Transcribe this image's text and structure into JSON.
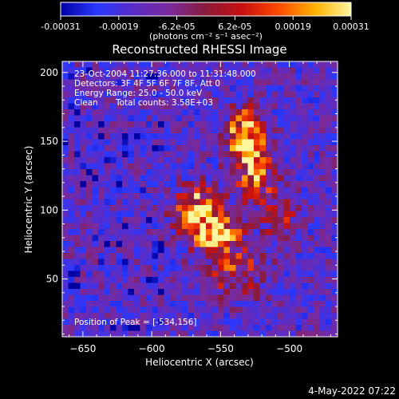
{
  "chart_data": {
    "type": "heatmap",
    "title": "Reconstructed RHESSI Image",
    "xlabel": "Heliocentric X (arcsec)",
    "ylabel": "Heliocentric Y (arcsec)",
    "xlim": [
      -665,
      -465
    ],
    "ylim": [
      8,
      208
    ],
    "xticks": [
      -650,
      -600,
      -550,
      -500
    ],
    "yticks": [
      50,
      100,
      150,
      200
    ],
    "colorbar": {
      "min": -0.00031,
      "max": 0.00031,
      "ticks": [
        "-0.00031",
        "-0.00019",
        "-6.2e-05",
        "6.2e-05",
        "0.00019",
        "0.00031"
      ],
      "unit_label": "(photons cm⁻² s⁻¹ asec⁻²)",
      "colormap": [
        "#0000a0",
        "#2a38ff",
        "#5a2cc8",
        "#7a2a9a",
        "#8a1a3a",
        "#c81010",
        "#ff4a00",
        "#ffb000",
        "#fff6a0"
      ]
    },
    "annotations": {
      "time_range": "23-Oct-2004 11:27:36.000 to 11:31:48.000",
      "detectors": "Detectors: 3F 4F 5F 6F 7F 8F, Att 0",
      "energy_range": "Energy Range: 25.0 - 50.0 keV",
      "algorithm": "Clean",
      "total_counts": "Total counts: 3.58E+03",
      "peak_position": "Position of Peak = [-534,156]"
    },
    "peak": {
      "x": -534,
      "y": 156
    },
    "sources": [
      {
        "x": -533,
        "y": 156,
        "amplitude": 1.0,
        "sigma_x": 7,
        "sigma_y": 11
      },
      {
        "x": -526,
        "y": 130,
        "amplitude": 0.7,
        "sigma_x": 10,
        "sigma_y": 16
      },
      {
        "x": -566,
        "y": 100,
        "amplitude": 0.85,
        "sigma_x": 11,
        "sigma_y": 11
      },
      {
        "x": -552,
        "y": 82,
        "amplitude": 0.8,
        "sigma_x": 12,
        "sigma_y": 9
      },
      {
        "x": -540,
        "y": 55,
        "amplitude": 0.45,
        "sigma_x": 14,
        "sigma_y": 12
      },
      {
        "x": -507,
        "y": 96,
        "amplitude": 0.4,
        "sigma_x": 8,
        "sigma_y": 12
      }
    ],
    "grid": false
  },
  "timestamp": "4-May-2022 07:22"
}
